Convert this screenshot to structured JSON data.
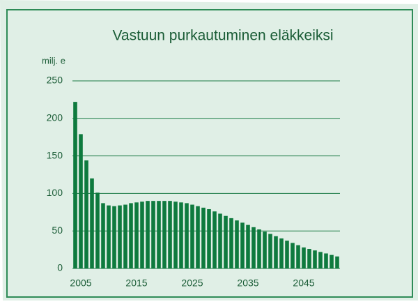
{
  "chart_data": {
    "type": "bar",
    "title": "Vastuun purkautuminen eläkkeiksi",
    "y_label": "milj. e",
    "categories": [
      null,
      "2005",
      null,
      null,
      null,
      null,
      null,
      null,
      null,
      null,
      null,
      "2015",
      null,
      null,
      null,
      null,
      null,
      null,
      null,
      null,
      null,
      "2025",
      null,
      null,
      null,
      null,
      null,
      null,
      null,
      null,
      null,
      "2035",
      null,
      null,
      null,
      null,
      null,
      null,
      null,
      null,
      null,
      "2045",
      null,
      null,
      null,
      null,
      null,
      null
    ],
    "values": [
      222,
      179,
      144,
      120,
      101,
      87,
      84,
      83,
      84,
      85,
      87,
      88,
      89,
      90,
      90,
      90,
      90,
      90,
      89,
      88,
      87,
      85,
      83,
      81,
      79,
      76,
      73,
      70,
      67,
      64,
      61,
      58,
      55,
      52,
      49,
      46,
      43,
      40,
      37,
      34,
      31,
      28,
      26,
      24,
      22,
      20,
      18,
      16
    ],
    "color": "#0e7a3e",
    "ylim": [
      0,
      250
    ],
    "yticks": [
      0,
      50,
      100,
      150,
      200,
      250
    ],
    "grid": true
  }
}
